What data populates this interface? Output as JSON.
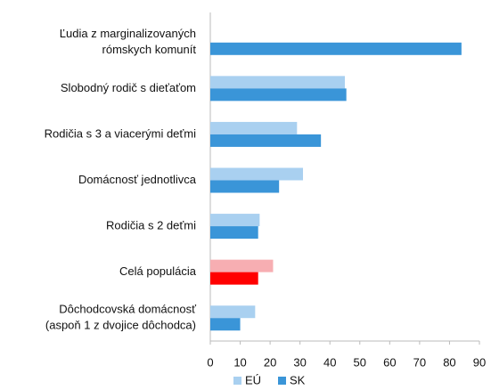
{
  "chart_data": {
    "type": "barh",
    "categories": [
      [
        "Ľudia z marginalizovaných",
        "rómskych komunít"
      ],
      [
        "Slobodný rodič s dieťaťom"
      ],
      [
        "Rodičia s 3 a viacerými deťmi"
      ],
      [
        "Domácnosť jednotlivca"
      ],
      [
        "Rodičia s 2 deťmi"
      ],
      [
        "Celá populácia"
      ],
      [
        "Dôchodcovská domácnosť",
        "(aspoň 1 z dvojice dôchodca)"
      ]
    ],
    "series": [
      {
        "name": "EÚ",
        "color": "#a9d0f0",
        "highlight_color": "#f7aeb2",
        "values": [
          null,
          45,
          29,
          31,
          16.5,
          21,
          15
        ]
      },
      {
        "name": "SK",
        "color": "#3a95d8",
        "highlight_color": "#ff0000",
        "values": [
          84,
          45.5,
          37,
          23,
          16,
          16,
          10
        ]
      }
    ],
    "highlight_index": 5,
    "xlim": [
      0,
      90
    ],
    "xticks": [
      0,
      10,
      20,
      30,
      40,
      50,
      60,
      70,
      80,
      90
    ],
    "grid": false,
    "legend": "bottom"
  }
}
